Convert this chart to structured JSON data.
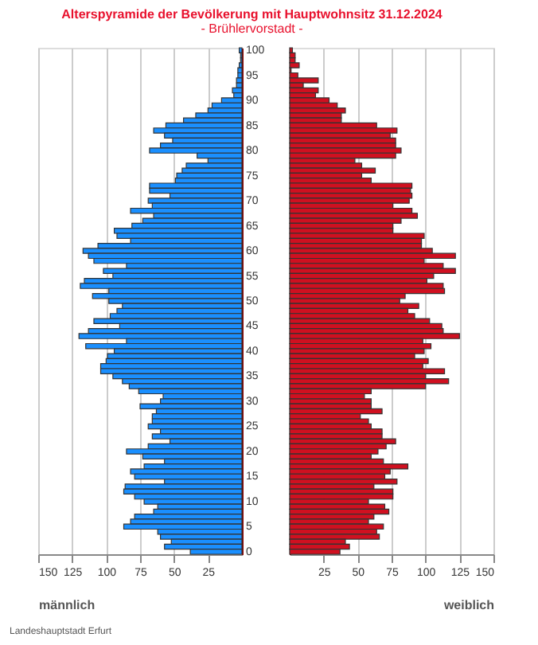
{
  "chart_data": [
    {
      "type": "bar",
      "orientation": "horizontal",
      "title": "Alterspyramide der Bevölkerung  mit Hauptwohnsitz 31.12.2024",
      "subtitle": "- Brühlervorstadt -",
      "xlabel": "männlich",
      "annotations": [
        "Landeshauptstadt Erfurt"
      ],
      "categories": [
        "100",
        null,
        null,
        null,
        null,
        "95",
        null,
        null,
        null,
        null,
        "90",
        null,
        null,
        null,
        null,
        "85",
        null,
        null,
        null,
        null,
        "80",
        null,
        null,
        null,
        null,
        "75",
        null,
        null,
        null,
        null,
        "70",
        null,
        null,
        null,
        null,
        "65",
        null,
        null,
        null,
        null,
        "60",
        null,
        null,
        null,
        null,
        "55",
        null,
        null,
        null,
        null,
        "50",
        null,
        null,
        null,
        null,
        "45",
        null,
        null,
        null,
        null,
        "40",
        null,
        null,
        null,
        null,
        "35",
        null,
        null,
        null,
        null,
        "30",
        null,
        null,
        null,
        null,
        "25",
        null,
        null,
        null,
        null,
        "20",
        null,
        null,
        null,
        null,
        "15",
        null,
        null,
        null,
        null,
        "10",
        null,
        null,
        null,
        null,
        "5",
        null,
        null,
        null,
        null,
        "0"
      ],
      "series": [
        {
          "color": "#1a8fff",
          "values": [
            2,
            1,
            1,
            2,
            3,
            3,
            4,
            4,
            7,
            6,
            15,
            22,
            25,
            34,
            43,
            56,
            65,
            57,
            51,
            60,
            68,
            33,
            25,
            41,
            44,
            48,
            49,
            68,
            68,
            53,
            69,
            66,
            82,
            65,
            73,
            81,
            94,
            92,
            82,
            106,
            117,
            113,
            109,
            85,
            102,
            95,
            116,
            119,
            98,
            110,
            98,
            88,
            92,
            97,
            109,
            90,
            113,
            120,
            85,
            115,
            94,
            99,
            100,
            104,
            104,
            95,
            88,
            83,
            76,
            58,
            60,
            75,
            63,
            66,
            66,
            69,
            60,
            66,
            53,
            69,
            85,
            73,
            57,
            72,
            82,
            79,
            57,
            86,
            87,
            79,
            72,
            62,
            65,
            79,
            82,
            87,
            62,
            60,
            52,
            57,
            38
          ]
        }
      ],
      "xlim": [
        150,
        0
      ],
      "xticks": [
        150,
        125,
        100,
        75,
        50,
        25
      ],
      "grid": "x"
    },
    {
      "type": "bar",
      "orientation": "horizontal",
      "xlabel": "weiblich",
      "categories": [
        "100",
        null,
        null,
        null,
        null,
        "95",
        null,
        null,
        null,
        null,
        "90",
        null,
        null,
        null,
        null,
        "85",
        null,
        null,
        null,
        null,
        "80",
        null,
        null,
        null,
        null,
        "75",
        null,
        null,
        null,
        null,
        "70",
        null,
        null,
        null,
        null,
        "65",
        null,
        null,
        null,
        null,
        "60",
        null,
        null,
        null,
        null,
        "55",
        null,
        null,
        null,
        null,
        "50",
        null,
        null,
        null,
        null,
        "45",
        null,
        null,
        null,
        null,
        "40",
        null,
        null,
        null,
        null,
        "35",
        null,
        null,
        null,
        null,
        "30",
        null,
        null,
        null,
        null,
        "25",
        null,
        null,
        null,
        null,
        "20",
        null,
        null,
        null,
        null,
        "15",
        null,
        null,
        null,
        null,
        "10",
        null,
        null,
        null,
        null,
        "5",
        null,
        null,
        null,
        null,
        "0"
      ],
      "series": [
        {
          "color": "#d01020",
          "values": [
            2,
            4,
            4,
            7,
            1,
            6,
            21,
            10,
            21,
            19,
            29,
            35,
            41,
            38,
            38,
            64,
            79,
            74,
            78,
            78,
            82,
            78,
            48,
            53,
            63,
            53,
            60,
            90,
            89,
            90,
            88,
            76,
            90,
            94,
            82,
            76,
            76,
            99,
            97,
            97,
            105,
            122,
            99,
            113,
            122,
            106,
            101,
            113,
            114,
            85,
            81,
            95,
            87,
            92,
            103,
            112,
            113,
            125,
            98,
            104,
            99,
            92,
            102,
            98,
            114,
            100,
            117,
            100,
            60,
            55,
            60,
            60,
            68,
            52,
            58,
            60,
            68,
            68,
            78,
            71,
            65,
            60,
            69,
            87,
            74,
            70,
            79,
            62,
            76,
            76,
            58,
            70,
            73,
            62,
            58,
            69,
            64,
            66,
            41,
            44,
            37
          ]
        }
      ],
      "xlim": [
        0,
        150
      ],
      "xticks": [
        25,
        50,
        75,
        100,
        125,
        150
      ],
      "grid": "x",
      "tick_labels": "x"
    }
  ]
}
